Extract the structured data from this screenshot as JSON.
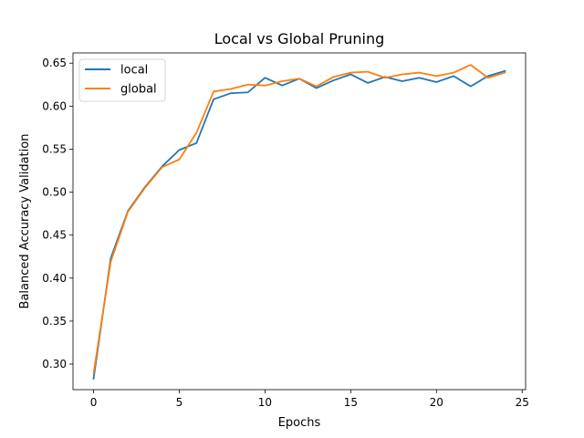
{
  "chart_data": {
    "type": "line",
    "title": "Local vs Global Pruning",
    "xlabel": "Epochs",
    "ylabel": "Balanced Accuracy Validation",
    "xlim": [
      -1.2,
      25.2
    ],
    "ylim": [
      0.2703,
      0.6619
    ],
    "xticks": [
      0,
      5,
      10,
      15,
      20,
      25
    ],
    "yticks": [
      0.3,
      0.35,
      0.4,
      0.45,
      0.5,
      0.55,
      0.6,
      0.65
    ],
    "xtick_labels": [
      "0",
      "5",
      "10",
      "15",
      "20",
      "25"
    ],
    "ytick_labels": [
      "0.30",
      "0.35",
      "0.40",
      "0.45",
      "0.50",
      "0.55",
      "0.60",
      "0.65"
    ],
    "grid": false,
    "legend_position": "top-left",
    "x": [
      0,
      1,
      2,
      3,
      4,
      5,
      6,
      7,
      8,
      9,
      10,
      11,
      12,
      13,
      14,
      15,
      16,
      17,
      18,
      19,
      20,
      21,
      22,
      23,
      24
    ],
    "series": [
      {
        "name": "local",
        "color": "#1f77b4",
        "values": [
          0.283,
          0.423,
          0.478,
          0.506,
          0.53,
          0.549,
          0.557,
          0.608,
          0.615,
          0.616,
          0.633,
          0.624,
          0.632,
          0.621,
          0.63,
          0.637,
          0.627,
          0.634,
          0.629,
          0.633,
          0.628,
          0.635,
          0.623,
          0.635,
          0.641
        ]
      },
      {
        "name": "global",
        "color": "#ff7f0e",
        "values": [
          0.289,
          0.419,
          0.477,
          0.505,
          0.529,
          0.538,
          0.569,
          0.617,
          0.62,
          0.625,
          0.624,
          0.629,
          0.632,
          0.623,
          0.634,
          0.639,
          0.64,
          0.633,
          0.637,
          0.639,
          0.635,
          0.639,
          0.648,
          0.633,
          0.639
        ]
      }
    ]
  }
}
